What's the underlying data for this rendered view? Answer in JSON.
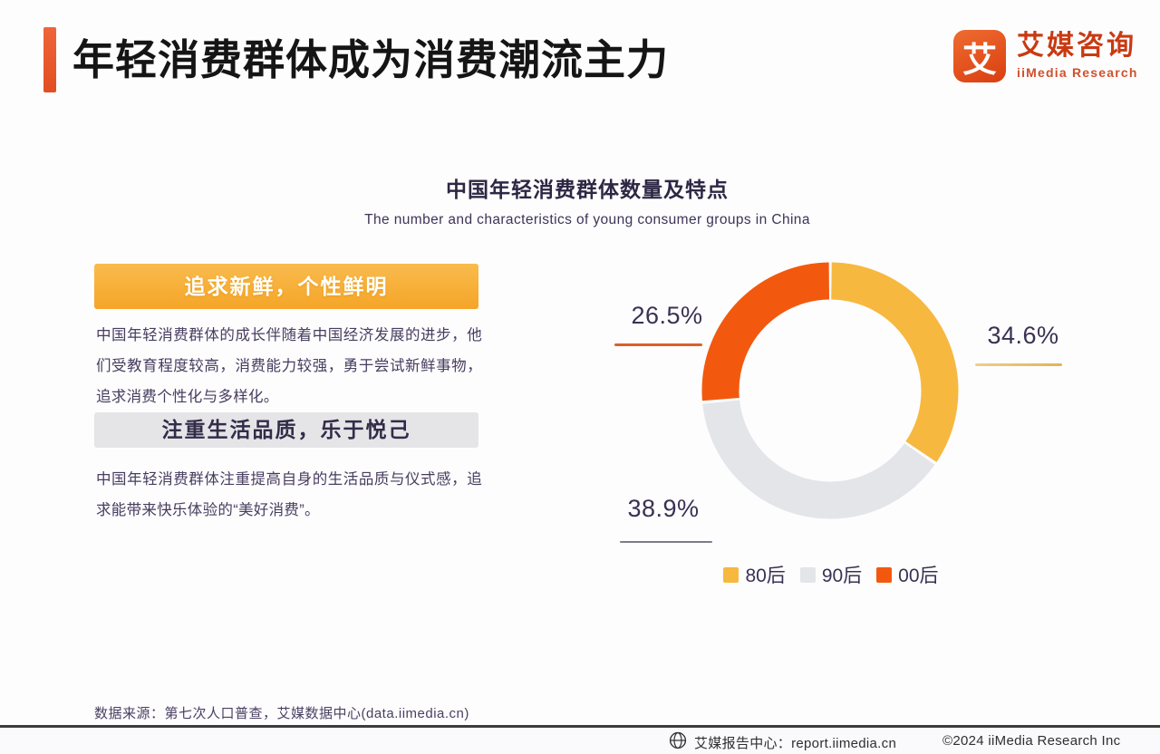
{
  "header": {
    "title": "年轻消费群体成为消费潮流主力"
  },
  "logo": {
    "mark": "艾",
    "name_cn": "艾媒咨询",
    "name_en": "iiMedia Research"
  },
  "panels": [
    {
      "heading": "追求新鲜，个性鲜明",
      "body": "中国年轻消费群体的成长伴随着中国经济发展的进步，他们受教育程度较高，消费能力较强，勇于尝试新鲜事物，追求消费个性化与多样化。"
    },
    {
      "heading": "注重生活品质，乐于悦己",
      "body": "中国年轻消费群体注重提高自身的生活品质与仪式感，追求能带来快乐体验的“美好消费”。"
    }
  ],
  "chart_data": {
    "type": "pie",
    "donut": true,
    "title": "中国年轻消费群体数量及特点",
    "subtitle": "The number and characteristics of young consumer groups in China",
    "categories": [
      "80后",
      "90后",
      "00后"
    ],
    "values": [
      34.6,
      38.9,
      26.5
    ],
    "value_labels": [
      "34.6%",
      "38.9%",
      "26.5%"
    ],
    "colors": [
      "#F7B83F",
      "#E3E5E9",
      "#F3590E"
    ],
    "start_angle_deg": 0,
    "direction": "clockwise",
    "legend_position": "bottom"
  },
  "footer": {
    "source": "数据来源：第七次人口普查，艾媒数据中心(data.iimedia.cn)",
    "report_center": "艾媒报告中心：report.iimedia.cn",
    "copyright": "©2024 iiMedia Research Inc"
  },
  "colors": {
    "accent_bar": "#EA572A",
    "brand_red": "#C93A12",
    "band_orange": "#F5A528",
    "band_gray": "#E5E5E8",
    "text_dark": "#3A3153"
  }
}
